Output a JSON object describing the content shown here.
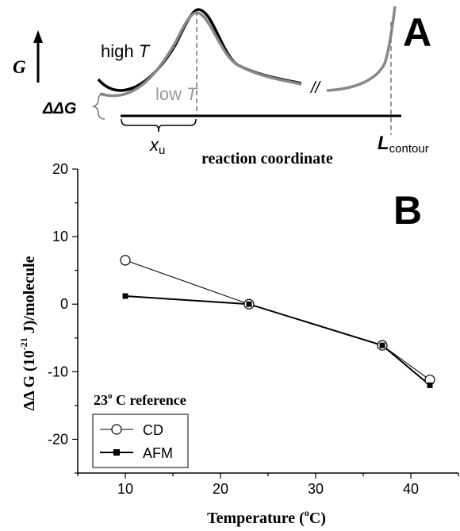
{
  "panel_a": {
    "panel_label": "A",
    "g_axis_label": "G",
    "high_t_prefix": "high ",
    "high_t_var": "T",
    "low_t_prefix": "low ",
    "low_t_var": "T",
    "delta_g_label": "ΔΔG",
    "break_mark": "//",
    "xu_var": "x",
    "xu_sub": "u",
    "lcontour_var": "L",
    "lcontour_sub": "contour",
    "x_axis_label": "reaction coordinate",
    "colors": {
      "high_T": "#000000",
      "low_T": "#888888"
    }
  },
  "chart_data": {
    "type": "line",
    "panel_label": "B",
    "xlabel_text": "Temperature (",
    "xlabel_sup": "o",
    "xlabel_end": "C)",
    "ylabel": "ΔΔ G (10",
    "ylabel_sup": "-21",
    "ylabel_end": " J)/molecule",
    "xlim": [
      5,
      45
    ],
    "ylim": [
      -25,
      20
    ],
    "xticks": [
      10,
      20,
      30,
      40
    ],
    "yticks": [
      -20,
      -10,
      0,
      10,
      20
    ],
    "grid": false,
    "legend": {
      "title": "23",
      "title_sup": "o",
      "title_end": " C reference",
      "placement": "bottom-left"
    },
    "series": [
      {
        "name": "CD",
        "marker": "open-circle",
        "color": "#000000",
        "x": [
          10,
          23,
          37,
          42
        ],
        "y": [
          6.5,
          0.0,
          -6.1,
          -11.2
        ]
      },
      {
        "name": "AFM",
        "marker": "filled-square",
        "color": "#000000",
        "x": [
          10,
          23,
          37,
          42
        ],
        "y": [
          1.2,
          0.0,
          -6.1,
          -12.0
        ]
      }
    ]
  }
}
